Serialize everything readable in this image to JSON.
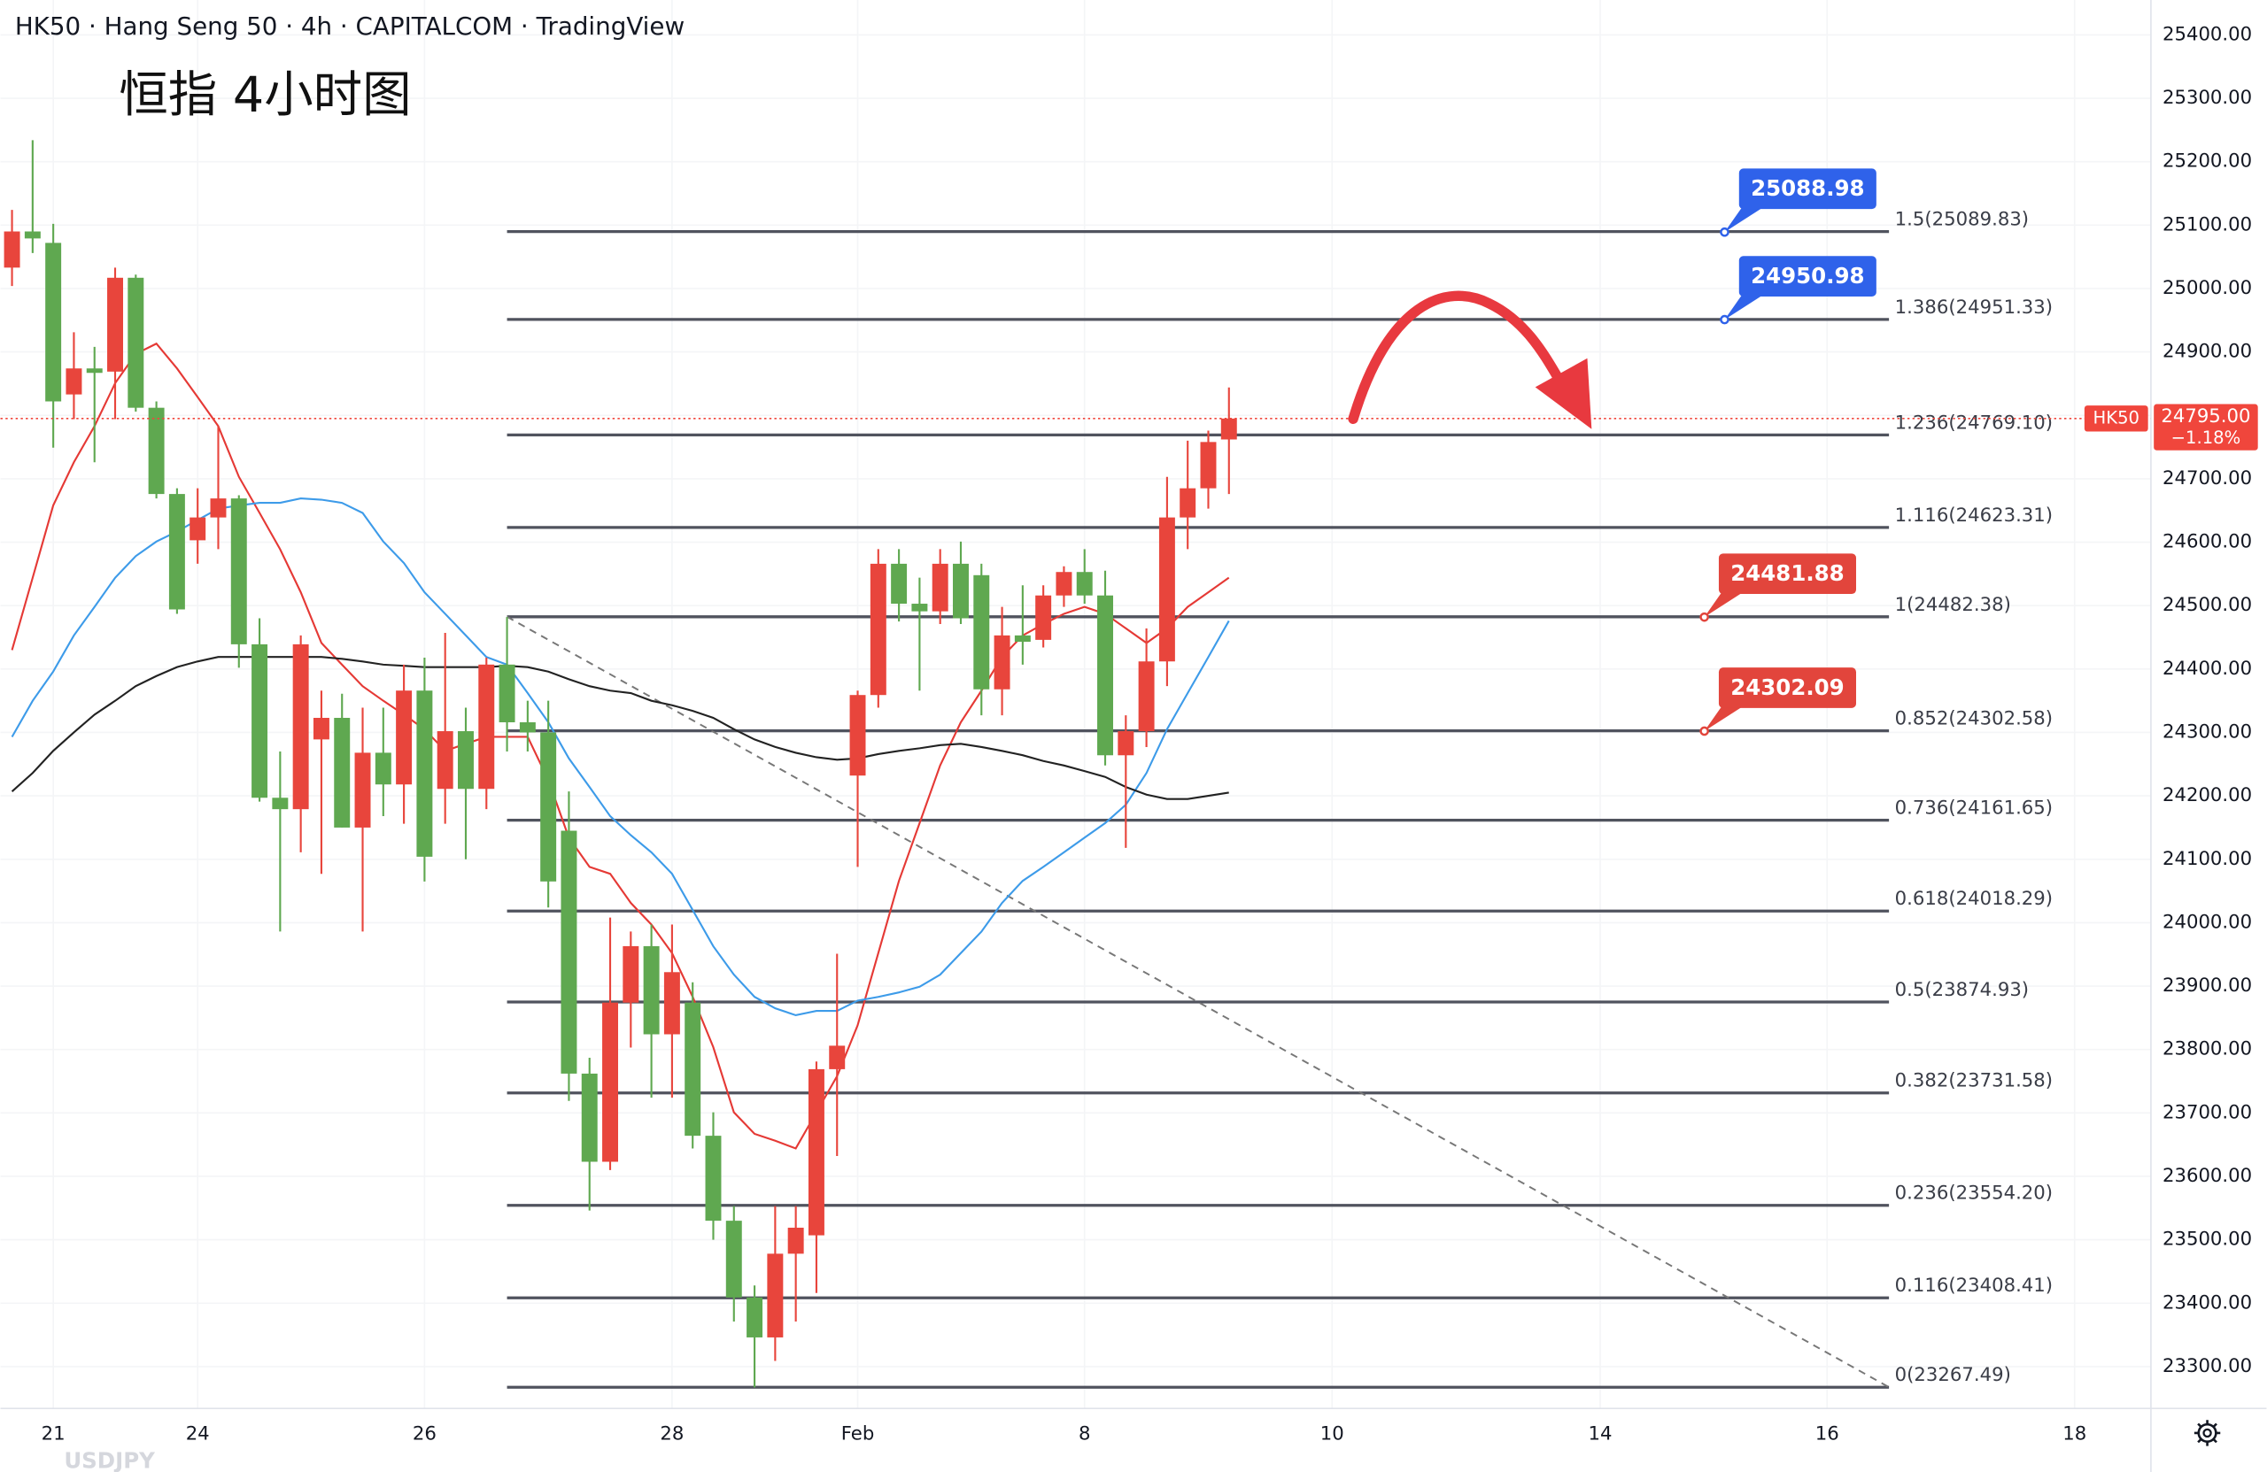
{
  "chart_data": {
    "type": "candlestick",
    "header": "HK50 · Hang Seng 50 · 4h · CAPITALCOM · TradingView",
    "title": "恒指 4小时图",
    "x": [
      0,
      1,
      2,
      3,
      4,
      5,
      6,
      7,
      8,
      9,
      10,
      11,
      12,
      13,
      14,
      15,
      16,
      17,
      18,
      19,
      20,
      21,
      22,
      23,
      24,
      25,
      26,
      27,
      28,
      29,
      30,
      31,
      32,
      33,
      34,
      35,
      36,
      37,
      38,
      39,
      40,
      41,
      42,
      43,
      44,
      45,
      46,
      47,
      48,
      49,
      50,
      51,
      52,
      53,
      54,
      55,
      56,
      57,
      58,
      59
    ],
    "open": [
      25033,
      25090,
      25072,
      24833,
      24874,
      24869,
      25017,
      24812,
      24676,
      24603,
      24639,
      24669,
      24439,
      24197,
      24179,
      24289,
      24323,
      24150,
      24268,
      24218,
      24366,
      24211,
      24302,
      24211,
      24407,
      24316,
      24300,
      24145,
      23762,
      23623,
      23874,
      23963,
      23824,
      23874,
      23664,
      23530,
      23409,
      23346,
      23478,
      23507,
      23769,
      24232,
      24359,
      24566,
      24503,
      24491,
      24566,
      24548,
      24368,
      24453,
      24446,
      24516,
      24553,
      24516,
      24264,
      24302,
      24412,
      24639,
      24685,
      24762
    ],
    "high": [
      25124,
      25234,
      25102,
      24931,
      24908,
      25033,
      25022,
      24822,
      24685,
      24685,
      24783,
      24674,
      24480,
      24270,
      24453,
      24366,
      24361,
      24339,
      24339,
      24407,
      24418,
      24457,
      24339,
      24418,
      24482,
      24350,
      24350,
      24207,
      23787,
      24008,
      23986,
      23997,
      23997,
      23906,
      23701,
      23553,
      23428,
      23553,
      23553,
      23781,
      23951,
      24366,
      24589,
      24589,
      24544,
      24589,
      24601,
      24566,
      24498,
      24532,
      24532,
      24562,
      24589,
      24555,
      24327,
      24464,
      24703,
      24760,
      24776,
      24844
    ],
    "low": [
      25004,
      25056,
      24749,
      24794,
      24726,
      24794,
      24806,
      24669,
      24487,
      24566,
      24589,
      24402,
      24191,
      23986,
      24111,
      24077,
      24150,
      23986,
      24168,
      24156,
      24065,
      24156,
      24100,
      24179,
      24270,
      24270,
      24024,
      23719,
      23546,
      23610,
      23803,
      23724,
      23724,
      23644,
      23500,
      23371,
      23267,
      23309,
      23371,
      23416,
      23632,
      24088,
      24339,
      24475,
      24366,
      24471,
      24471,
      24327,
      24327,
      24407,
      24434,
      24498,
      24503,
      24248,
      24118,
      24277,
      24373,
      24589,
      24653,
      24676
    ],
    "close": [
      25090,
      25079,
      24822,
      24874,
      24867,
      25017,
      24812,
      24676,
      24494,
      24639,
      24669,
      24439,
      24197,
      24179,
      24439,
      24323,
      24150,
      24268,
      24218,
      24366,
      24104,
      24302,
      24211,
      24407,
      24316,
      24300,
      24065,
      23762,
      23623,
      23874,
      23963,
      23824,
      23922,
      23664,
      23530,
      23409,
      23346,
      23478,
      23519,
      23769,
      23806,
      24359,
      24566,
      24503,
      24491,
      24566,
      24480,
      24368,
      24453,
      24443,
      24516,
      24553,
      24516,
      24264,
      24302,
      24412,
      24639,
      24685,
      24758,
      24795
    ],
    "up_color": "#e8453c",
    "down_color": "#5fa850",
    "series": [
      {
        "color": "#e53935",
        "values": [
          24430,
          24544,
          24658,
          24726,
          24783,
          24851,
          24897,
          24913,
          24874,
          24829,
          24783,
          24703,
          24646,
          24589,
          24521,
          24441,
          24407,
          24373,
          24350,
          24328,
          24305,
          24271,
          24282,
          24293,
          24293,
          24293,
          24225,
          24134,
          24088,
          24077,
          24031,
          23997,
          23952,
          23883,
          23804,
          23701,
          23667,
          23656,
          23644,
          23701,
          23758,
          23838,
          23952,
          24066,
          24157,
          24248,
          24316,
          24366,
          24419,
          24453,
          24471,
          24487,
          24498,
          24487,
          24464,
          24441,
          24464,
          24498,
          24521,
          24544
        ]
      },
      {
        "color": "#3d9be9",
        "values": [
          24293,
          24350,
          24396,
          24453,
          24498,
          24544,
          24578,
          24601,
          24617,
          24635,
          24653,
          24658,
          24662,
          24662,
          24669,
          24667,
          24662,
          24646,
          24601,
          24567,
          24521,
          24487,
          24453,
          24419,
          24407,
          24362,
          24316,
          24259,
          24214,
          24168,
          24138,
          24111,
          24077,
          24020,
          23963,
          23918,
          23883,
          23865,
          23854,
          23861,
          23861,
          23877,
          23883,
          23890,
          23899,
          23918,
          23952,
          23986,
          24031,
          24066,
          24088,
          24111,
          24134,
          24157,
          24186,
          24236,
          24305,
          24362,
          24419,
          24476
        ]
      },
      {
        "color": "#222222",
        "values": [
          24207,
          24236,
          24271,
          24300,
          24328,
          24350,
          24373,
          24389,
          24403,
          24412,
          24419,
          24419,
          24419,
          24419,
          24419,
          24419,
          24416,
          24412,
          24407,
          24405,
          24403,
          24403,
          24403,
          24403,
          24405,
          24403,
          24396,
          24384,
          24373,
          24366,
          24362,
          24350,
          24343,
          24334,
          24323,
          24305,
          24289,
          24277,
          24268,
          24261,
          24257,
          24259,
          24266,
          24271,
          24275,
          24280,
          24282,
          24277,
          24271,
          24264,
          24255,
          24248,
          24239,
          24230,
          24214,
          24202,
          24195,
          24195,
          24200,
          24205
        ]
      }
    ],
    "xlim": [
      -0.56,
      103.7
    ],
    "xticks": [
      {
        "value": 2,
        "label": "21"
      },
      {
        "value": 9,
        "label": "24"
      },
      {
        "value": 20,
        "label": "26"
      },
      {
        "value": 32,
        "label": "28"
      },
      {
        "value": 41,
        "label": "Feb"
      },
      {
        "value": 52,
        "label": "8"
      },
      {
        "value": 64,
        "label": "10"
      },
      {
        "value": 77,
        "label": "14"
      },
      {
        "value": 88,
        "label": "16"
      },
      {
        "value": 100,
        "label": "18"
      }
    ],
    "ylim": [
      23234,
      25455
    ],
    "yticks": [
      {
        "value": 23300,
        "label": "23300.00"
      },
      {
        "value": 23400,
        "label": "23400.00"
      },
      {
        "value": 23500,
        "label": "23500.00"
      },
      {
        "value": 23600,
        "label": "23600.00"
      },
      {
        "value": 23700,
        "label": "23700.00"
      },
      {
        "value": 23800,
        "label": "23800.00"
      },
      {
        "value": 23900,
        "label": "23900.00"
      },
      {
        "value": 24000,
        "label": "24000.00"
      },
      {
        "value": 24100,
        "label": "24100.00"
      },
      {
        "value": 24200,
        "label": "24200.00"
      },
      {
        "value": 24300,
        "label": "24300.00"
      },
      {
        "value": 24400,
        "label": "24400.00"
      },
      {
        "value": 24500,
        "label": "24500.00"
      },
      {
        "value": 24600,
        "label": "24600.00"
      },
      {
        "value": 24700,
        "label": "24700.00"
      },
      {
        "value": 24800,
        "label": "24800.00"
      },
      {
        "value": 24900,
        "label": "24900.00"
      },
      {
        "value": 25000,
        "label": "25000.00"
      },
      {
        "value": 25100,
        "label": "25100.00"
      },
      {
        "value": 25200,
        "label": "25200.00"
      },
      {
        "value": 25300,
        "label": "25300.00"
      },
      {
        "value": 25400,
        "label": "25400.00"
      }
    ],
    "grid": true,
    "fib_levels": [
      {
        "label": "1.5(25089.83)",
        "value": 25089.83
      },
      {
        "label": "1.386(24951.33)",
        "value": 24951.33
      },
      {
        "label": "1.236(24769.10)",
        "value": 24769.1
      },
      {
        "label": "1.116(24623.31)",
        "value": 24623.31
      },
      {
        "label": "1(24482.38)",
        "value": 24482.38
      },
      {
        "label": "0.852(24302.58)",
        "value": 24302.58
      },
      {
        "label": "0.736(24161.65)",
        "value": 24161.65
      },
      {
        "label": "0.618(24018.29)",
        "value": 24018.29
      },
      {
        "label": "0.5(23874.93)",
        "value": 23874.93
      },
      {
        "label": "0.382(23731.58)",
        "value": 23731.58
      },
      {
        "label": "0.236(23554.20)",
        "value": 23554.2
      },
      {
        "label": "0.116(23408.41)",
        "value": 23408.41
      },
      {
        "label": "0(23267.49)",
        "value": 23267.49
      }
    ],
    "callouts": [
      {
        "value": 25088.98,
        "color": "#2f62ea"
      },
      {
        "value": 24950.98,
        "color": "#2f62ea"
      },
      {
        "value": 24481.88,
        "color": "#e2453c"
      },
      {
        "value": 24302.09,
        "color": "#e2453c"
      }
    ],
    "last_price": {
      "symbol": "HK50",
      "value": 24795,
      "label": "24795.00",
      "change": "−1.18%",
      "color": "#f0463c"
    },
    "footer_symbol": "USDJPY"
  }
}
